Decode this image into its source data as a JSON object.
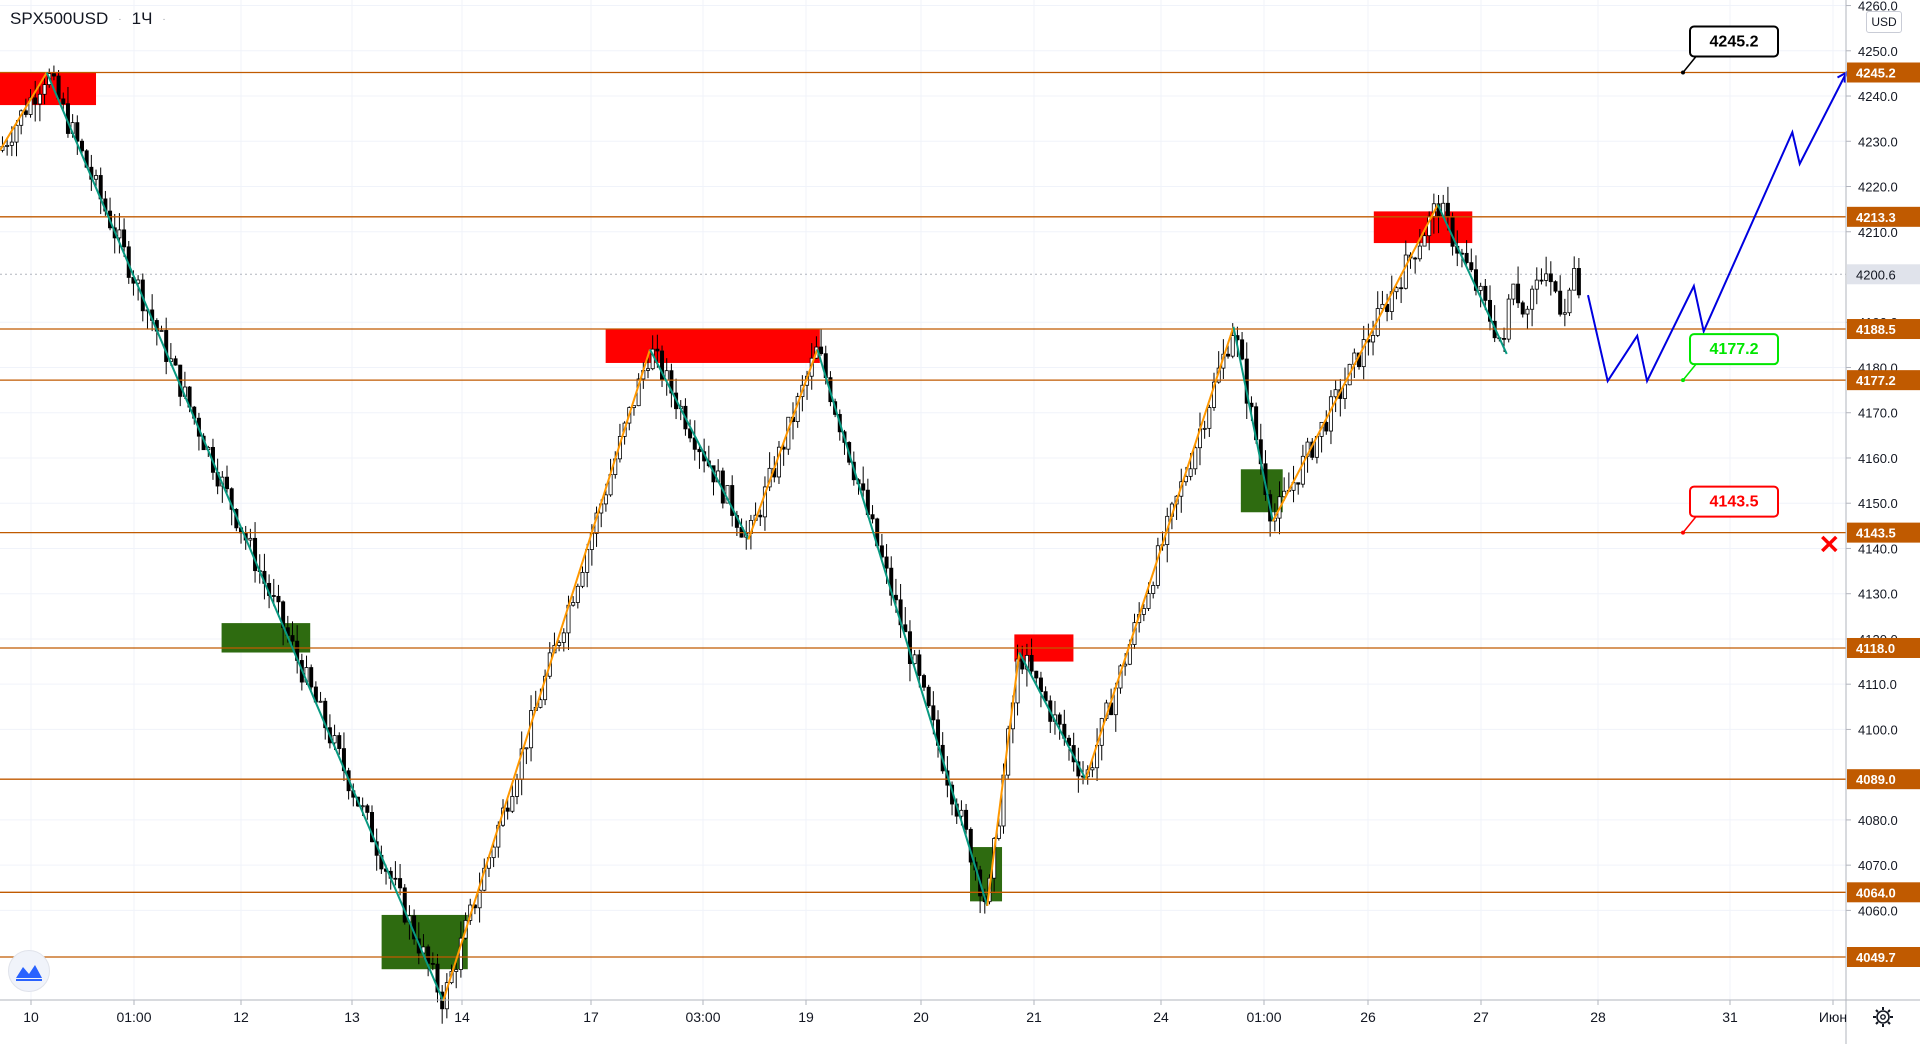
{
  "header": {
    "symbol": "SPX500USD",
    "interval": "1Ч"
  },
  "price_scale": {
    "currency": "USD"
  },
  "chart_data": {
    "type": "candlestick",
    "title": "SPX500USD 1Ч",
    "ylim": [
      4040,
      4262
    ],
    "y_ticks": [
      4260,
      4250,
      4240,
      4230,
      4220,
      4210,
      4190,
      4180,
      4170,
      4160,
      4150,
      4140,
      4130,
      4120,
      4110,
      4100,
      4080,
      4070,
      4060
    ],
    "x_ticks": [
      "10",
      "01:00",
      "12",
      "13",
      "14",
      "17",
      "03:00",
      "19",
      "20",
      "21",
      "24",
      "01:00",
      "26",
      "27",
      "28",
      "31",
      "Июн"
    ],
    "last_price": 4200.6,
    "price_levels": [
      4245.2,
      4213.3,
      4188.5,
      4177.2,
      4143.5,
      4118.0,
      4089.0,
      4064.0,
      4049.7
    ],
    "level_labels": [
      "4245.2",
      "4213.3",
      "4188.5",
      "4177.2",
      "4143.5",
      "4118.0",
      "4089.0",
      "4064.0",
      "4049.7"
    ],
    "last_price_label": "4200.6",
    "targets": [
      {
        "label": "4245.2",
        "value": 4245.2,
        "color": "#000000"
      },
      {
        "label": "4177.2",
        "value": 4177.2,
        "color": "#00e600"
      },
      {
        "label": "4143.5",
        "value": 4143.5,
        "color": "#ff0000"
      }
    ],
    "supply_zones": [
      {
        "from": 0.0,
        "to": 3.9,
        "top": 4245.2,
        "bottom": 4238
      },
      {
        "from": 24.6,
        "to": 33.3,
        "top": 4188.5,
        "bottom": 4181
      },
      {
        "from": 41.2,
        "to": 43.6,
        "top": 4121,
        "bottom": 4115
      },
      {
        "from": 55.8,
        "to": 59.8,
        "top": 4214.5,
        "bottom": 4207.5
      }
    ],
    "demand_zones": [
      {
        "from": 9.0,
        "to": 12.6,
        "top": 4123.5,
        "bottom": 4117
      },
      {
        "from": 15.5,
        "to": 19.0,
        "top": 4059,
        "bottom": 4047
      },
      {
        "from": 39.4,
        "to": 40.7,
        "top": 4074,
        "bottom": 4062
      },
      {
        "from": 50.4,
        "to": 52.1,
        "top": 4157.5,
        "bottom": 4148
      }
    ],
    "zigzag": [
      {
        "t": 0.0,
        "v": 4228
      },
      {
        "t": 1.9,
        "v": 4245.2
      },
      {
        "t": 18.0,
        "v": 4040
      },
      {
        "t": 26.4,
        "v": 4184
      },
      {
        "t": 30.4,
        "v": 4142
      },
      {
        "t": 33.2,
        "v": 4184
      },
      {
        "t": 40.1,
        "v": 4061
      },
      {
        "t": 41.4,
        "v": 4117
      },
      {
        "t": 44.1,
        "v": 4089
      },
      {
        "t": 50.1,
        "v": 4189
      },
      {
        "t": 51.7,
        "v": 4146
      },
      {
        "t": 58.4,
        "v": 4216
      },
      {
        "t": 61.2,
        "v": 4183
      }
    ],
    "forecast": [
      {
        "t": 64.5,
        "v": 4196
      },
      {
        "t": 65.3,
        "v": 4177
      },
      {
        "t": 66.5,
        "v": 4187
      },
      {
        "t": 66.9,
        "v": 4177
      },
      {
        "t": 68.8,
        "v": 4198
      },
      {
        "t": 69.2,
        "v": 4188
      },
      {
        "t": 72.8,
        "v": 4232
      },
      {
        "t": 73.1,
        "v": 4225
      },
      {
        "t": 75.0,
        "v": 4245.2
      }
    ],
    "stop_marker": {
      "t": 74.3,
      "v": 4141
    }
  }
}
